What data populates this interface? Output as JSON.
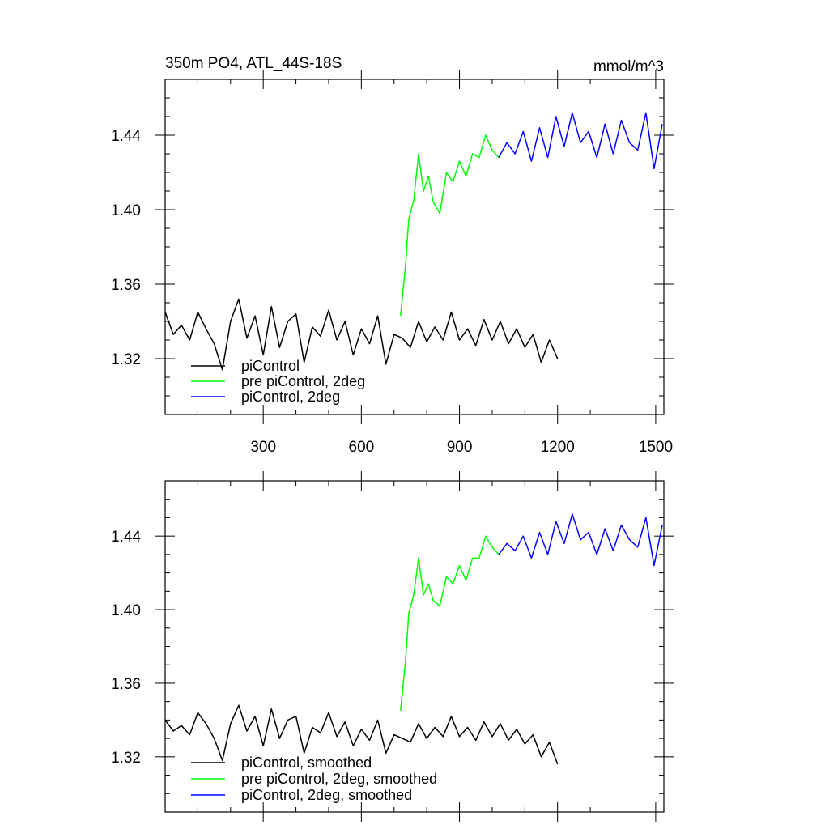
{
  "chart_data": [
    {
      "type": "line",
      "title": "350m PO4, ATL_44S-18S",
      "units": "mmol/m^3",
      "xlim": [
        0,
        1525
      ],
      "ylim": [
        1.29,
        1.47
      ],
      "xticks": [
        300,
        600,
        900,
        1200,
        1500
      ],
      "yticks": [
        1.32,
        1.36,
        1.4,
        1.44
      ],
      "series": [
        {
          "name": "piControl",
          "color": "#000000",
          "x": [
            0,
            25,
            50,
            75,
            100,
            125,
            150,
            175,
            200,
            225,
            250,
            275,
            300,
            325,
            350,
            375,
            400,
            425,
            450,
            475,
            500,
            525,
            550,
            575,
            600,
            625,
            650,
            675,
            700,
            725,
            750,
            775,
            800,
            825,
            850,
            875,
            900,
            925,
            950,
            975,
            1000,
            1025,
            1050,
            1075,
            1100,
            1125,
            1150,
            1175,
            1200
          ],
          "values": [
            1.345,
            1.333,
            1.338,
            1.33,
            1.345,
            1.336,
            1.328,
            1.314,
            1.34,
            1.352,
            1.331,
            1.343,
            1.322,
            1.348,
            1.326,
            1.34,
            1.344,
            1.318,
            1.337,
            1.332,
            1.346,
            1.33,
            1.34,
            1.322,
            1.336,
            1.328,
            1.343,
            1.317,
            1.333,
            1.331,
            1.326,
            1.34,
            1.329,
            1.337,
            1.33,
            1.345,
            1.33,
            1.336,
            1.327,
            1.341,
            1.33,
            1.34,
            1.328,
            1.336,
            1.326,
            1.333,
            1.318,
            1.33,
            1.32
          ]
        },
        {
          "name": "pre piControl, 2deg",
          "color": "#00ff00",
          "x": [
            720,
            735,
            745,
            760,
            775,
            790,
            805,
            820,
            840,
            860,
            880,
            900,
            920,
            940,
            960,
            980,
            1000,
            1020
          ],
          "values": [
            1.343,
            1.37,
            1.395,
            1.405,
            1.43,
            1.41,
            1.418,
            1.404,
            1.398,
            1.42,
            1.415,
            1.426,
            1.418,
            1.43,
            1.428,
            1.44,
            1.432,
            1.428
          ]
        },
        {
          "name": "piControl, 2deg",
          "color": "#0000ff",
          "x": [
            1020,
            1045,
            1070,
            1095,
            1120,
            1145,
            1170,
            1195,
            1220,
            1245,
            1270,
            1295,
            1320,
            1345,
            1370,
            1395,
            1420,
            1445,
            1470,
            1495,
            1520
          ],
          "values": [
            1.428,
            1.436,
            1.43,
            1.442,
            1.426,
            1.444,
            1.428,
            1.45,
            1.434,
            1.452,
            1.436,
            1.442,
            1.428,
            1.446,
            1.43,
            1.448,
            1.436,
            1.432,
            1.452,
            1.422,
            1.446
          ]
        }
      ]
    },
    {
      "type": "line",
      "xlim": [
        0,
        1525
      ],
      "ylim": [
        1.29,
        1.47
      ],
      "yticks": [
        1.32,
        1.36,
        1.4,
        1.44
      ],
      "series": [
        {
          "name": "piControl, smoothed",
          "color": "#000000",
          "x": [
            0,
            25,
            50,
            75,
            100,
            125,
            150,
            175,
            200,
            225,
            250,
            275,
            300,
            325,
            350,
            375,
            400,
            425,
            450,
            475,
            500,
            525,
            550,
            575,
            600,
            625,
            650,
            675,
            700,
            725,
            750,
            775,
            800,
            825,
            850,
            875,
            900,
            925,
            950,
            975,
            1000,
            1025,
            1050,
            1075,
            1100,
            1125,
            1150,
            1175,
            1200
          ],
          "values": [
            1.34,
            1.334,
            1.337,
            1.332,
            1.344,
            1.338,
            1.33,
            1.318,
            1.338,
            1.348,
            1.334,
            1.342,
            1.326,
            1.346,
            1.33,
            1.34,
            1.342,
            1.322,
            1.336,
            1.333,
            1.344,
            1.331,
            1.339,
            1.326,
            1.335,
            1.329,
            1.34,
            1.322,
            1.332,
            1.33,
            1.328,
            1.338,
            1.33,
            1.336,
            1.331,
            1.342,
            1.331,
            1.336,
            1.329,
            1.339,
            1.331,
            1.338,
            1.329,
            1.335,
            1.327,
            1.332,
            1.32,
            1.328,
            1.316
          ]
        },
        {
          "name": "pre piControl, 2deg, smoothed",
          "color": "#00ff00",
          "x": [
            720,
            735,
            745,
            760,
            775,
            790,
            805,
            820,
            840,
            860,
            880,
            900,
            920,
            940,
            960,
            980,
            1000,
            1020
          ],
          "values": [
            1.345,
            1.372,
            1.398,
            1.408,
            1.428,
            1.408,
            1.414,
            1.405,
            1.402,
            1.418,
            1.414,
            1.424,
            1.416,
            1.428,
            1.428,
            1.44,
            1.434,
            1.43
          ]
        },
        {
          "name": "piControl, 2deg, smoothed",
          "color": "#0000ff",
          "x": [
            1020,
            1045,
            1070,
            1095,
            1120,
            1145,
            1170,
            1195,
            1220,
            1245,
            1270,
            1295,
            1320,
            1345,
            1370,
            1395,
            1420,
            1445,
            1470,
            1495,
            1520
          ],
          "values": [
            1.43,
            1.436,
            1.432,
            1.44,
            1.428,
            1.442,
            1.43,
            1.448,
            1.436,
            1.452,
            1.438,
            1.442,
            1.43,
            1.444,
            1.432,
            1.446,
            1.438,
            1.434,
            1.45,
            1.424,
            1.446
          ]
        }
      ]
    }
  ]
}
